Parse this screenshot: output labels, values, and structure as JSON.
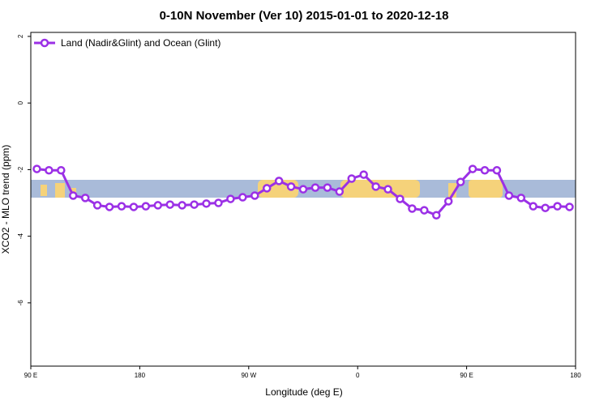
{
  "chart_data": {
    "type": "line",
    "title": "0-10N November (Ver 10)   2015-01-01 to 2020-12-18",
    "x_label": "Longitude (deg E)",
    "y_label": "XCO2 - MLO trend (ppm)",
    "x": [
      95,
      105,
      115,
      125,
      135,
      145,
      155,
      165,
      175,
      185,
      195,
      205,
      215,
      225,
      235,
      245,
      255,
      265,
      275,
      285,
      295,
      305,
      315,
      325,
      335,
      345,
      355,
      365,
      375,
      385,
      395,
      405,
      415,
      425,
      435,
      445,
      455,
      465,
      475,
      485,
      495,
      505,
      515,
      525,
      535
    ],
    "series": [
      {
        "name": "Land (Nadir&Glint) and Ocean (Glint)",
        "color": "#9b30e6",
        "values": [
          -1.98,
          -2.02,
          -2.02,
          -2.78,
          -2.85,
          -3.07,
          -3.12,
          -3.1,
          -3.12,
          -3.1,
          -3.07,
          -3.05,
          -3.07,
          -3.05,
          -3.02,
          -3.0,
          -2.88,
          -2.83,
          -2.78,
          -2.56,
          -2.34,
          -2.51,
          -2.59,
          -2.54,
          -2.54,
          -2.66,
          -2.27,
          -2.15,
          -2.51,
          -2.59,
          -2.88,
          -3.17,
          -3.22,
          -3.37,
          -2.95,
          -2.37,
          -1.98,
          -2.02,
          -2.02,
          -2.78,
          -2.85,
          -3.1,
          -3.15,
          -3.1,
          -3.12
        ]
      }
    ],
    "xlim": [
      90,
      540
    ],
    "xticks": [
      {
        "value": 90,
        "label": "90 E"
      },
      {
        "value": 180,
        "label": "180"
      },
      {
        "value": 270,
        "label": "90 W"
      },
      {
        "value": 360,
        "label": "0"
      },
      {
        "value": 450,
        "label": "90 E"
      },
      {
        "value": 540,
        "label": "180"
      }
    ],
    "ylim": [
      -7.9,
      2.12
    ],
    "yticks": [
      -6,
      -4,
      -2,
      0,
      2
    ],
    "legend": "top-left"
  }
}
